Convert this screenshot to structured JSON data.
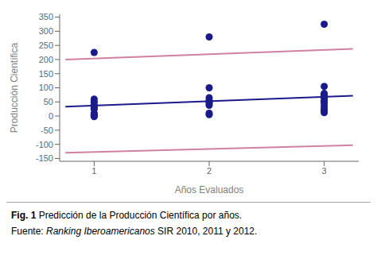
{
  "chart_data": {
    "type": "scatter",
    "x_label": "Años Evaluados",
    "y_label": "Producción Científica",
    "xlim": [
      0.7,
      3.3
    ],
    "ylim": [
      -160,
      360
    ],
    "xticks": [
      1,
      2,
      3
    ],
    "yticks": [
      -150,
      -100,
      -50,
      0,
      50,
      100,
      150,
      200,
      250,
      300,
      350
    ],
    "grid": false,
    "series": [
      {
        "type": "scatter",
        "marker": "circle",
        "color": "#1a1a8c",
        "x": [
          1,
          1,
          1,
          1,
          1,
          1,
          1,
          1,
          1,
          1,
          1,
          1,
          2,
          2,
          2,
          2,
          2,
          2,
          2,
          2,
          2,
          3,
          3,
          3,
          3,
          3,
          3,
          3,
          3,
          3,
          3,
          3,
          3,
          3,
          3
        ],
        "values": [
          225,
          60,
          50,
          40,
          35,
          30,
          25,
          10,
          5,
          2,
          0,
          -2,
          280,
          100,
          65,
          55,
          50,
          45,
          38,
          10,
          5,
          325,
          105,
          80,
          75,
          72,
          68,
          65,
          55,
          50,
          45,
          35,
          25,
          18,
          12
        ]
      },
      {
        "type": "line",
        "line_style": "solid",
        "color": "#d080a0",
        "x": [
          0.75,
          3.25
        ],
        "values": [
          200,
          238
        ]
      },
      {
        "type": "line",
        "line_style": "solid",
        "color": "#d080a0",
        "x": [
          0.75,
          3.25
        ],
        "values": [
          -130,
          -103
        ]
      },
      {
        "type": "line",
        "line_style": "solid",
        "color": "#1a1a8c",
        "x": [
          0.75,
          3.25
        ],
        "values": [
          33,
          72
        ]
      }
    ],
    "annotations": [
      [
        {
          "text": "Fig. 1",
          "font_style": "bold"
        },
        {
          "text": " Predicción de la Producción Científica por años."
        }
      ],
      [
        {
          "text": "Fuente: "
        },
        {
          "text": "Ranking Iberoamericanos",
          "font_style": "italic"
        },
        {
          "text": " SIR 2010, 2011 y 2012."
        }
      ]
    ]
  }
}
